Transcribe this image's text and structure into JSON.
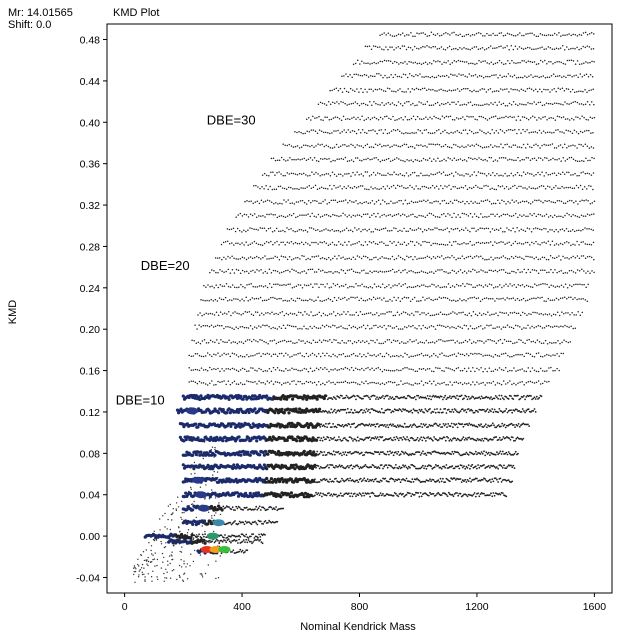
{
  "header": {
    "mr_label": "Mr: 14.01565",
    "shift_label": "Shift: 0.0",
    "plot_title": "KMD Plot"
  },
  "chart_data": {
    "type": "scatter",
    "title": "KMD Plot",
    "xlabel": "Nominal Kendrick Mass",
    "ylabel": "KMD",
    "xlim": [
      -60,
      1660
    ],
    "ylim": [
      -0.055,
      0.495
    ],
    "x_ticks": [
      0,
      400,
      800,
      1200,
      1600
    ],
    "y_ticks": [
      -0.04,
      0.0,
      0.04,
      0.08,
      0.12,
      0.16,
      0.2,
      0.24,
      0.28,
      0.32,
      0.36,
      0.4,
      0.44,
      0.48
    ],
    "y_tick_labels": [
      "-0.04",
      "0.00",
      "0.04",
      "0.08",
      "0.12",
      "0.16",
      "0.20",
      "0.24",
      "0.28",
      "0.32",
      "0.36",
      "0.40",
      "0.44",
      "0.48"
    ],
    "grid": false,
    "series": [
      {
        "rows": [
          {
            "kmd": -0.015,
            "x0": 250,
            "x1": 420,
            "dense": true
          },
          {
            "kmd": -0.005,
            "x0": 150,
            "x1": 470,
            "dense": true
          },
          {
            "kmd": 0.0,
            "x0": 70,
            "x1": 480,
            "dense": true
          },
          {
            "kmd": 0.013,
            "x0": 200,
            "x1": 520,
            "dense": true
          },
          {
            "kmd": 0.027,
            "x0": 200,
            "x1": 540,
            "dense": true
          },
          {
            "kmd": 0.04,
            "x0": 200,
            "x1": 1300,
            "dense": true
          },
          {
            "kmd": 0.054,
            "x0": 200,
            "x1": 1320,
            "dense": true
          },
          {
            "kmd": 0.067,
            "x0": 200,
            "x1": 1330,
            "dense": true
          },
          {
            "kmd": 0.08,
            "x0": 200,
            "x1": 1340,
            "dense": true
          },
          {
            "kmd": 0.094,
            "x0": 190,
            "x1": 1360,
            "dense": true
          },
          {
            "kmd": 0.107,
            "x0": 190,
            "x1": 1380,
            "dense": true
          },
          {
            "kmd": 0.121,
            "x0": 180,
            "x1": 1400,
            "dense": true
          },
          {
            "kmd": 0.134,
            "x0": 200,
            "x1": 1420,
            "dense": true
          },
          {
            "kmd": 0.148,
            "x0": 220,
            "x1": 1450,
            "dense": false
          },
          {
            "kmd": 0.161,
            "x0": 220,
            "x1": 1480,
            "dense": false
          },
          {
            "kmd": 0.175,
            "x0": 220,
            "x1": 1500,
            "dense": false
          },
          {
            "kmd": 0.188,
            "x0": 230,
            "x1": 1520,
            "dense": false
          },
          {
            "kmd": 0.202,
            "x0": 240,
            "x1": 1540,
            "dense": false
          },
          {
            "kmd": 0.215,
            "x0": 250,
            "x1": 1560,
            "dense": false
          },
          {
            "kmd": 0.229,
            "x0": 260,
            "x1": 1580,
            "dense": false
          },
          {
            "kmd": 0.242,
            "x0": 270,
            "x1": 1580,
            "dense": false
          },
          {
            "kmd": 0.256,
            "x0": 290,
            "x1": 1600,
            "dense": false
          },
          {
            "kmd": 0.269,
            "x0": 310,
            "x1": 1600,
            "dense": false
          },
          {
            "kmd": 0.283,
            "x0": 330,
            "x1": 1600,
            "dense": false
          },
          {
            "kmd": 0.296,
            "x0": 350,
            "x1": 1600,
            "dense": false
          },
          {
            "kmd": 0.31,
            "x0": 380,
            "x1": 1600,
            "dense": false
          },
          {
            "kmd": 0.323,
            "x0": 410,
            "x1": 1600,
            "dense": false
          },
          {
            "kmd": 0.337,
            "x0": 440,
            "x1": 1600,
            "dense": false
          },
          {
            "kmd": 0.35,
            "x0": 470,
            "x1": 1600,
            "dense": false
          },
          {
            "kmd": 0.364,
            "x0": 500,
            "x1": 1600,
            "dense": false
          },
          {
            "kmd": 0.377,
            "x0": 540,
            "x1": 1600,
            "dense": false
          },
          {
            "kmd": 0.391,
            "x0": 580,
            "x1": 1600,
            "dense": false
          },
          {
            "kmd": 0.404,
            "x0": 620,
            "x1": 1600,
            "dense": false
          },
          {
            "kmd": 0.418,
            "x0": 660,
            "x1": 1600,
            "dense": false
          },
          {
            "kmd": 0.431,
            "x0": 700,
            "x1": 1600,
            "dense": false
          },
          {
            "kmd": 0.445,
            "x0": 740,
            "x1": 1600,
            "dense": false
          },
          {
            "kmd": 0.458,
            "x0": 780,
            "x1": 1600,
            "dense": false
          },
          {
            "kmd": 0.472,
            "x0": 820,
            "x1": 1600,
            "dense": false
          },
          {
            "kmd": 0.485,
            "x0": 870,
            "x1": 1600,
            "dense": false
          }
        ],
        "hotspots": [
          {
            "x": 280,
            "y": -0.013,
            "color": "#e8321e"
          },
          {
            "x": 310,
            "y": -0.013,
            "color": "#f0a020"
          },
          {
            "x": 340,
            "y": -0.013,
            "color": "#3cbf3c"
          },
          {
            "x": 300,
            "y": 0.0,
            "color": "#2a9a6a"
          },
          {
            "x": 320,
            "y": 0.013,
            "color": "#3a8ab0"
          },
          {
            "x": 270,
            "y": 0.027,
            "color": "#2a3a8a"
          },
          {
            "x": 260,
            "y": 0.04,
            "color": "#2a3a8a"
          },
          {
            "x": 250,
            "y": 0.054,
            "color": "#2a3a8a"
          },
          {
            "x": 230,
            "y": 0.121,
            "color": "#2a3a8a"
          }
        ]
      }
    ],
    "annotations": [
      {
        "text": "DBE=10",
        "x": -30,
        "y": 0.127
      },
      {
        "text": "DBE=20",
        "x": 55,
        "y": 0.257
      },
      {
        "text": "DBE=30",
        "x": 280,
        "y": 0.398
      }
    ]
  }
}
